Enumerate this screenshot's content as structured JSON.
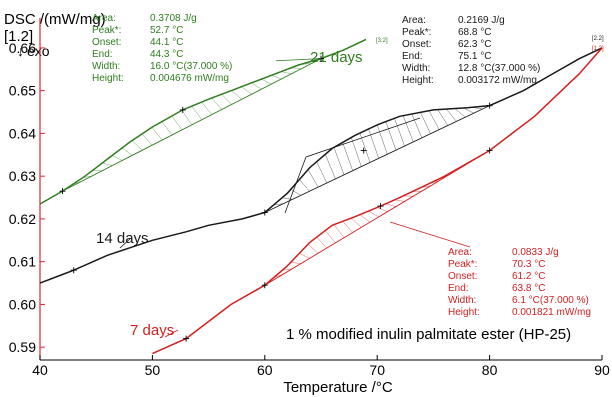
{
  "chart_data": {
    "type": "line",
    "title": "1 % modified inulin palmitate ester (HP-25)",
    "xlabel": "Temperature /°C",
    "ylabel": "DSC /(mW/mg)",
    "y_scale_note": "[1.2]",
    "exo_label": "exo",
    "xlim": [
      40,
      90
    ],
    "ylim": [
      0.587,
      0.667
    ],
    "x_ticks": [
      40,
      50,
      60,
      70,
      80,
      90
    ],
    "y_ticks": [
      0.59,
      0.6,
      0.61,
      0.62,
      0.63,
      0.64,
      0.65,
      0.66
    ],
    "grid": false,
    "series": [
      {
        "name": "21 days",
        "end_tag": "[3.2]",
        "color": "#2e7d1e",
        "points": [
          [
            40,
            0.6235
          ],
          [
            42,
            0.6265
          ],
          [
            44,
            0.63
          ],
          [
            46,
            0.634
          ],
          [
            48,
            0.638
          ],
          [
            50,
            0.6415
          ],
          [
            52.7,
            0.6455
          ],
          [
            55,
            0.648
          ],
          [
            57,
            0.65
          ],
          [
            59,
            0.652
          ],
          [
            61,
            0.654
          ],
          [
            63,
            0.656
          ],
          [
            65,
            0.6575
          ],
          [
            67,
            0.6595
          ],
          [
            69,
            0.662
          ]
        ],
        "baseline": [
          [
            42,
            0.6265
          ],
          [
            65,
            0.6575
          ]
        ],
        "markers": [
          [
            42,
            0.6265
          ],
          [
            52.7,
            0.6455
          ],
          [
            65,
            0.6575
          ]
        ],
        "annotation": {
          "color": "#2e7d1e",
          "rows": [
            {
              "label": "Area:",
              "value": "0.3708 J/g"
            },
            {
              "label": "Peak*:",
              "value": "52.7 °C"
            },
            {
              "label": "Onset:",
              "value": "44.1 °C"
            },
            {
              "label": "End:",
              "value": "44.3 °C"
            },
            {
              "label": "Width:",
              "value": "16.0 °C(37.000 %)"
            },
            {
              "label": "Height:",
              "value": "0.004676 mW/mg"
            }
          ]
        }
      },
      {
        "name": "14 days",
        "end_tag": "[2.2]",
        "color": "#1a1a1a",
        "points": [
          [
            40,
            0.605
          ],
          [
            42,
            0.607
          ],
          [
            43,
            0.608
          ],
          [
            46,
            0.6115
          ],
          [
            50,
            0.615
          ],
          [
            53,
            0.617
          ],
          [
            55,
            0.6185
          ],
          [
            58,
            0.62
          ],
          [
            60,
            0.6215
          ],
          [
            62,
            0.626
          ],
          [
            64,
            0.632
          ],
          [
            66,
            0.6365
          ],
          [
            68,
            0.6395
          ],
          [
            70,
            0.642
          ],
          [
            72,
            0.644
          ],
          [
            75,
            0.6455
          ],
          [
            78,
            0.646
          ],
          [
            80,
            0.6465
          ],
          [
            83,
            0.65
          ],
          [
            86,
            0.6545
          ],
          [
            88,
            0.6575
          ],
          [
            90,
            0.66
          ]
        ],
        "baseline": [
          [
            60,
            0.6215
          ],
          [
            80,
            0.6465
          ]
        ],
        "markers": [
          [
            43,
            0.608
          ],
          [
            60,
            0.6215
          ],
          [
            68.8,
            0.636
          ],
          [
            80,
            0.6465
          ]
        ],
        "annotation": {
          "color": "#1a1a1a",
          "rows": [
            {
              "label": "Area:",
              "value": "0.2169 J/g"
            },
            {
              "label": "Peak*:",
              "value": "68.8 °C"
            },
            {
              "label": "Onset:",
              "value": "62.3 °C"
            },
            {
              "label": "End:",
              "value": "75.1 °C"
            },
            {
              "label": "Width:",
              "value": "12.8 °C(37.000 %)"
            },
            {
              "label": "Height:",
              "value": "0.003172 mW/mg"
            }
          ]
        }
      },
      {
        "name": "7 days",
        "end_tag": "[1.2]",
        "color": "#d21f1f",
        "points": [
          [
            50,
            0.5885
          ],
          [
            53,
            0.592
          ],
          [
            55,
            0.596
          ],
          [
            57,
            0.6
          ],
          [
            60,
            0.6045
          ],
          [
            62,
            0.609
          ],
          [
            64,
            0.6145
          ],
          [
            66,
            0.6185
          ],
          [
            68,
            0.6205
          ],
          [
            70.3,
            0.623
          ],
          [
            72,
            0.625
          ],
          [
            74,
            0.6275
          ],
          [
            76,
            0.63
          ],
          [
            78,
            0.633
          ],
          [
            80,
            0.636
          ],
          [
            82,
            0.64
          ],
          [
            84,
            0.644
          ],
          [
            86,
            0.649
          ],
          [
            88,
            0.654
          ],
          [
            90,
            0.66
          ]
        ],
        "baseline": [
          [
            60,
            0.6045
          ],
          [
            80,
            0.636
          ]
        ],
        "markers": [
          [
            53,
            0.592
          ],
          [
            60,
            0.6045
          ],
          [
            70.3,
            0.623
          ],
          [
            80,
            0.636
          ]
        ],
        "annotation": {
          "color": "#d21f1f",
          "rows": [
            {
              "label": "Area:",
              "value": "0.0833 J/g"
            },
            {
              "label": "Peak*:",
              "value": "70.3 °C"
            },
            {
              "label": "Onset:",
              "value": "61.2 °C"
            },
            {
              "label": "End:",
              "value": "63.8 °C"
            },
            {
              "label": "Width:",
              "value": "6.1 °C(37.000 %)"
            },
            {
              "label": "Height:",
              "value": "0.001821 mW/mg"
            }
          ]
        }
      }
    ]
  }
}
